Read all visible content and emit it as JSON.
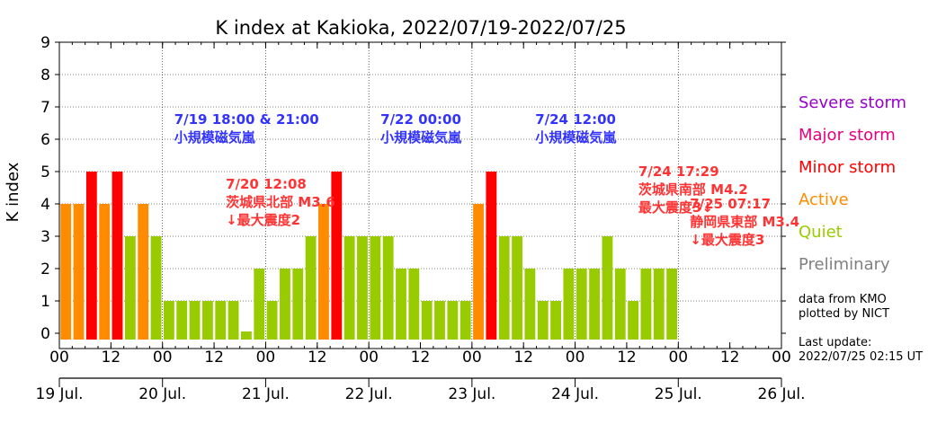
{
  "chart_data": {
    "type": "bar",
    "title": "K index at Kakioka, 2022/07/19-2022/07/25",
    "ylabel": "K index",
    "ylim": [
      0,
      9
    ],
    "yticks": [
      "0",
      "1",
      "2",
      "3",
      "4",
      "5",
      "6",
      "7",
      "8",
      "9"
    ],
    "xlim": [
      "2022/07/19 00:00",
      "2022/07/26 00:00"
    ],
    "interval_hours": 3,
    "grid": true,
    "hour_ticks": [
      "00",
      "12",
      "00",
      "12",
      "00",
      "12",
      "00",
      "12",
      "00",
      "12",
      "00",
      "12",
      "00",
      "12",
      "00"
    ],
    "date_ticks": [
      "19 Jul.",
      "20 Jul.",
      "21 Jul.",
      "22 Jul.",
      "23 Jul.",
      "24 Jul.",
      "25 Jul.",
      "26 Jul."
    ],
    "values": [
      4,
      4,
      5,
      4,
      5,
      3,
      4,
      3,
      1,
      1,
      1,
      1,
      1,
      1,
      0,
      2,
      1,
      2,
      2,
      3,
      4,
      5,
      3,
      3,
      3,
      3,
      2,
      2,
      1,
      1,
      1,
      1,
      4,
      5,
      3,
      3,
      2,
      1,
      1,
      2,
      2,
      2,
      3,
      2,
      1,
      2,
      2,
      2
    ],
    "categories_legend": [
      {
        "label": "Severe storm",
        "color": "#9900cc"
      },
      {
        "label": "Major storm",
        "color": "#e6007e"
      },
      {
        "label": "Minor storm",
        "color": "#ff0000"
      },
      {
        "label": "Active",
        "color": "#ff8c00"
      },
      {
        "label": "Quiet",
        "color": "#99cc00"
      },
      {
        "label": "Preliminary",
        "color": "#808080"
      }
    ],
    "annotations": [
      {
        "lines": [
          "7/19 18:00 & 21:00",
          "小規模磁気嵐"
        ],
        "color": "#3333ff",
        "x_hours": 24,
        "y": 6.3
      },
      {
        "lines": [
          "7/22 00:00",
          "小規模磁気嵐"
        ],
        "color": "#3333ff",
        "x_hours": 72,
        "y": 6.3
      },
      {
        "lines": [
          "7/24 12:00",
          "小規模磁気嵐"
        ],
        "color": "#3333ff",
        "x_hours": 108,
        "y": 6.3
      },
      {
        "lines": [
          "7/20 12:08",
          "茨城県北部 M3.6",
          "↓最大震度2"
        ],
        "color": "#ff3333",
        "x_hours": 36,
        "y": 4.3
      },
      {
        "lines": [
          "7/24 17:29",
          "茨城県南部 M4.2",
          "最大震度3↓"
        ],
        "color": "#ff3333",
        "x_hours": 132,
        "y": 4.7
      },
      {
        "lines": [
          "7/25 07:17",
          "静岡県東部 M3.4",
          "↓最大震度3"
        ],
        "color": "#ff3333",
        "x_hours": 144,
        "y": 3.7
      }
    ]
  },
  "notes": {
    "source": "data from KMO",
    "plotted": "plotted by NICT",
    "update_label": "Last update:",
    "update_time": "2022/07/25 02:15 UT"
  }
}
